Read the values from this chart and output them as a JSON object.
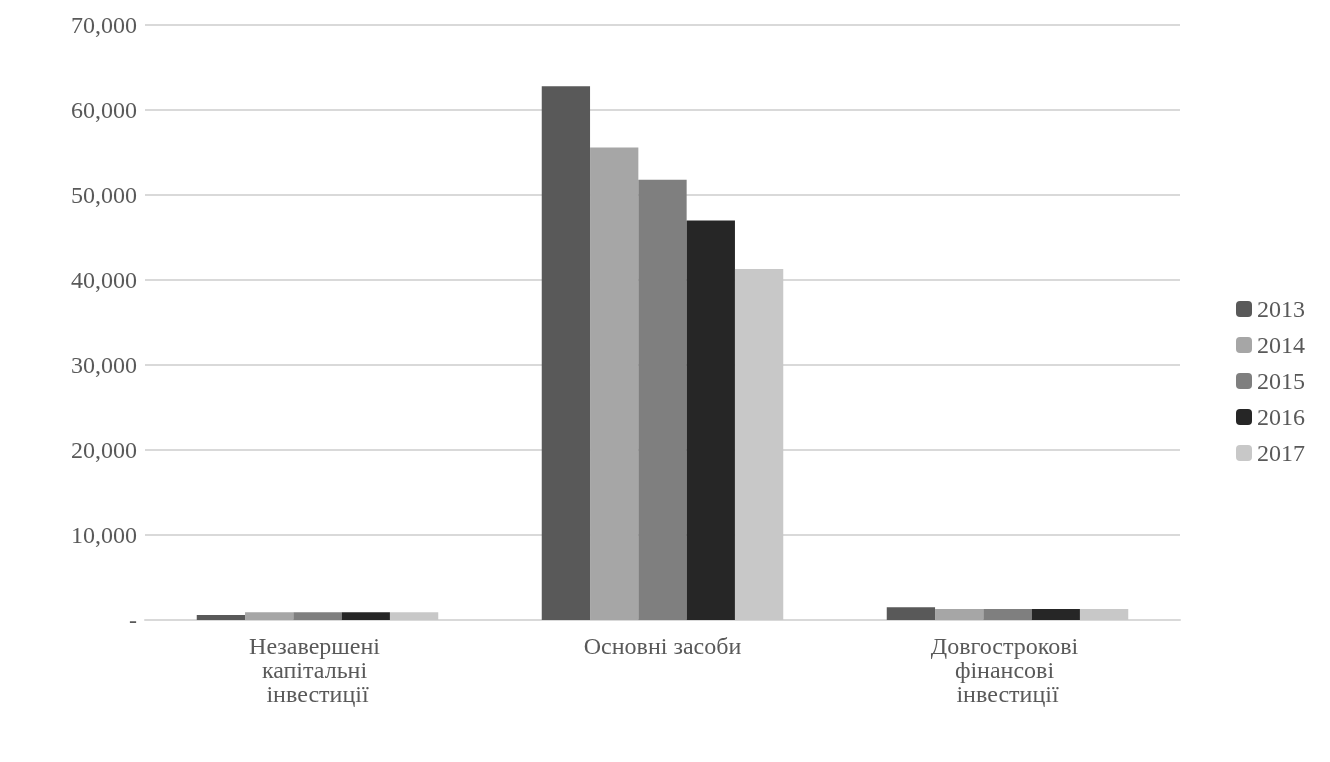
{
  "chart_data": {
    "type": "bar",
    "categories": [
      "Незавершені капітальні інвестиції",
      "Основні засоби",
      "Довгострокові фінансові інвестиції"
    ],
    "series": [
      {
        "name": "2013",
        "color": "#595959",
        "values": [
          600,
          62800,
          1500
        ]
      },
      {
        "name": "2014",
        "color": "#a6a6a6",
        "values": [
          900,
          55600,
          1300
        ]
      },
      {
        "name": "2015",
        "color": "#7f7f7f",
        "values": [
          900,
          51800,
          1300
        ]
      },
      {
        "name": "2016",
        "color": "#262626",
        "values": [
          900,
          47000,
          1300
        ]
      },
      {
        "name": "2017",
        "color": "#c8c8c8",
        "values": [
          900,
          41300,
          1300
        ]
      }
    ],
    "ylim": [
      0,
      70000
    ],
    "yticks": [
      {
        "value": 0,
        "label": "-"
      },
      {
        "value": 10000,
        "label": "10,000"
      },
      {
        "value": 20000,
        "label": "20,000"
      },
      {
        "value": 30000,
        "label": "30,000"
      },
      {
        "value": 40000,
        "label": "40,000"
      },
      {
        "value": 50000,
        "label": "50,000"
      },
      {
        "value": 60000,
        "label": "60,000"
      },
      {
        "value": 70000,
        "label": "70,000"
      }
    ],
    "grid": "y",
    "legend": "right"
  }
}
